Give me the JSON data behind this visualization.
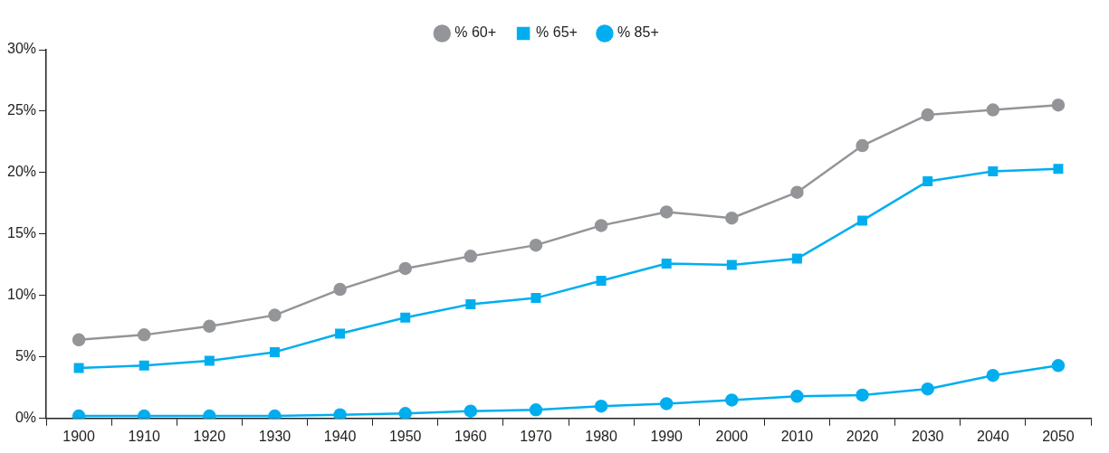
{
  "chart_data": {
    "type": "line",
    "categories": [
      "1900",
      "1910",
      "1920",
      "1930",
      "1940",
      "1950",
      "1960",
      "1970",
      "1980",
      "1990",
      "2000",
      "2010",
      "2020",
      "2030",
      "2040",
      "2050"
    ],
    "series": [
      {
        "name": "% 60+",
        "color": "#939598",
        "marker": "circle",
        "values": [
          6.4,
          6.8,
          7.5,
          8.4,
          10.5,
          12.2,
          13.2,
          14.1,
          15.7,
          16.8,
          16.3,
          18.4,
          22.2,
          24.7,
          25.1,
          25.5
        ]
      },
      {
        "name": "% 65+",
        "color": "#00aeef",
        "marker": "square",
        "values": [
          4.1,
          4.3,
          4.7,
          5.4,
          6.9,
          8.2,
          9.3,
          9.8,
          11.2,
          12.6,
          12.5,
          13.0,
          16.1,
          19.3,
          20.1,
          20.3
        ]
      },
      {
        "name": "% 85+",
        "color": "#00aeef",
        "marker": "circle",
        "values": [
          0.2,
          0.2,
          0.2,
          0.2,
          0.3,
          0.4,
          0.6,
          0.7,
          1.0,
          1.2,
          1.5,
          1.8,
          1.9,
          2.4,
          3.5,
          4.3
        ]
      }
    ],
    "ylim": [
      0,
      30
    ],
    "yticks": [
      {
        "value": 0,
        "label": "0%"
      },
      {
        "value": 5,
        "label": "5%"
      },
      {
        "value": 10,
        "label": "10%"
      },
      {
        "value": 15,
        "label": "15%"
      },
      {
        "value": 20,
        "label": "20%"
      },
      {
        "value": 25,
        "label": "25%"
      },
      {
        "value": 30,
        "label": "30%"
      }
    ],
    "grid": false,
    "legend": "top",
    "line_style": "solid"
  }
}
